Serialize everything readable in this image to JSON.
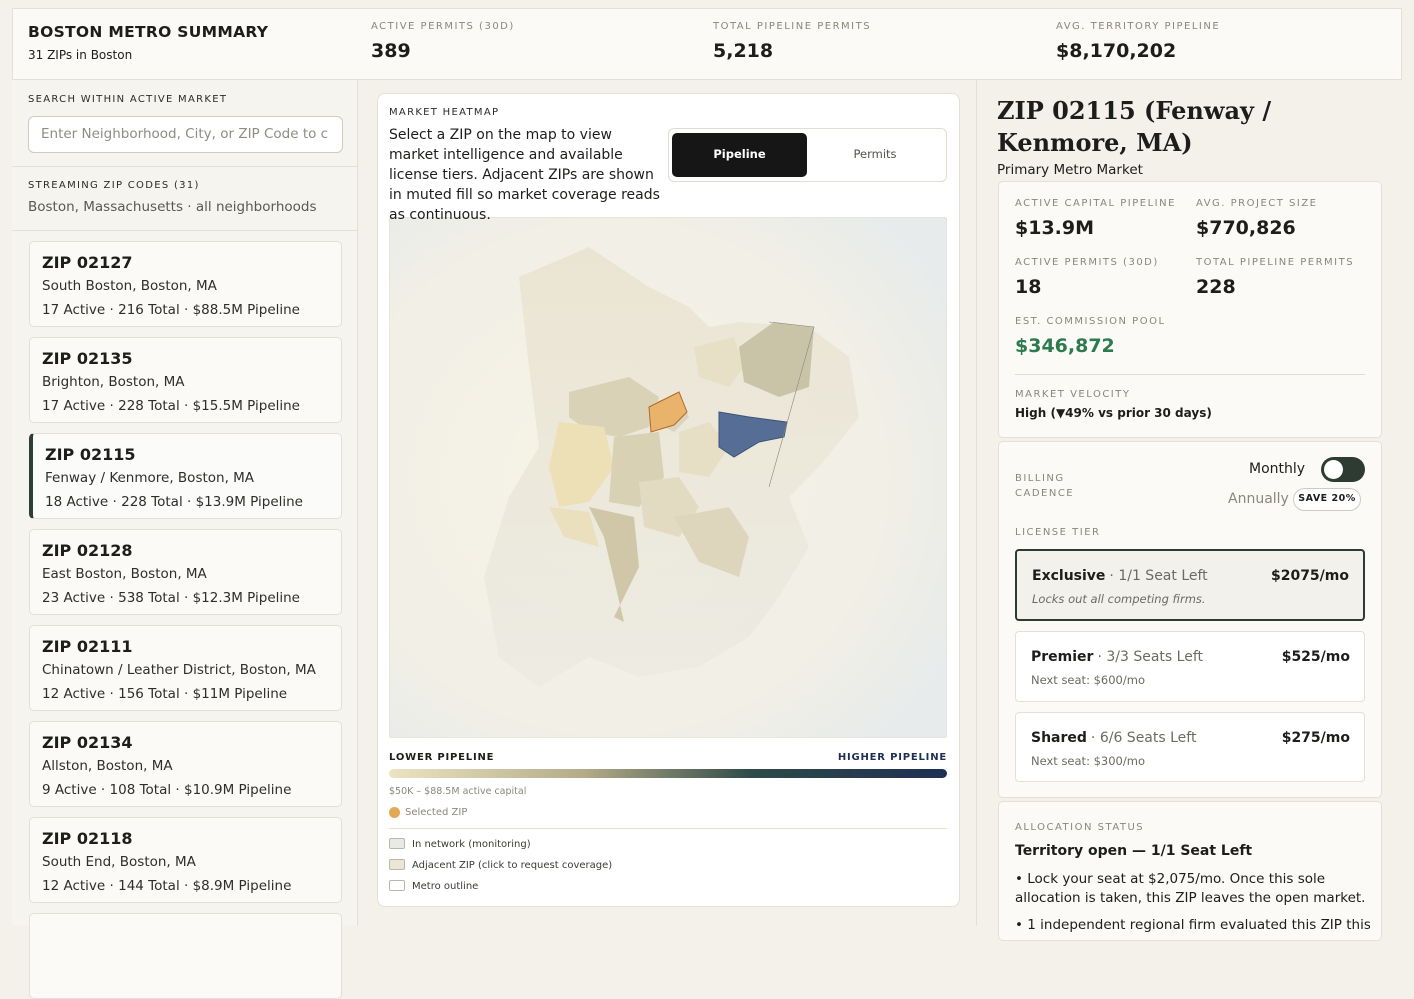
{
  "header": {
    "title": "BOSTON METRO SUMMARY",
    "subtitle": "31 ZIPs in Boston",
    "stats": [
      {
        "label": "ACTIVE PERMITS (30D)",
        "value": "389"
      },
      {
        "label": "TOTAL PIPELINE PERMITS",
        "value": "5,218"
      },
      {
        "label": "AVG. TERRITORY PIPELINE",
        "value": "$8,170,202"
      }
    ]
  },
  "sidebar": {
    "search_label": "SEARCH WITHIN ACTIVE MARKET",
    "search_placeholder": "Enter Neighborhood, City, or ZIP Code to c",
    "list_label": "STREAMING ZIP CODES (31)",
    "list_sub": "Boston, Massachusetts · all neighborhoods",
    "zips": [
      {
        "zip": "ZIP 02127",
        "area": "South Boston, Boston, MA",
        "stats": "17 Active · 216 Total · $88.5M Pipeline"
      },
      {
        "zip": "ZIP 02135",
        "area": "Brighton, Boston, MA",
        "stats": "17 Active · 228 Total · $15.5M Pipeline"
      },
      {
        "zip": "ZIP 02115",
        "area": "Fenway / Kenmore, Boston, MA",
        "stats": "18 Active · 228 Total · $13.9M Pipeline",
        "selected": true
      },
      {
        "zip": "ZIP 02128",
        "area": "East Boston, Boston, MA",
        "stats": "23 Active · 538 Total · $12.3M Pipeline"
      },
      {
        "zip": "ZIP 02111",
        "area": "Chinatown / Leather District, Boston, MA",
        "stats": "12 Active · 156 Total · $11M Pipeline"
      },
      {
        "zip": "ZIP 02134",
        "area": "Allston, Boston, MA",
        "stats": "9 Active · 108 Total · $10.9M Pipeline"
      },
      {
        "zip": "ZIP 02118",
        "area": "South End, Boston, MA",
        "stats": "12 Active · 144 Total · $8.9M Pipeline"
      }
    ]
  },
  "map": {
    "label": "MARKET HEATMAP",
    "description": "Select a ZIP on the map to view market intelligence and available license tiers. Adjacent ZIPs are shown in muted fill so market coverage reads as continuous.",
    "tabs": [
      "Pipeline",
      "Permits"
    ],
    "legend": {
      "low": "LOWER PIPELINE",
      "high": "HIGHER PIPELINE",
      "range": "$50K – $88.5M active capital",
      "selected": "Selected ZIP",
      "items": [
        "In network (monitoring)",
        "Adjacent ZIP (click to request coverage)",
        "Metro outline"
      ]
    }
  },
  "detail": {
    "title": "ZIP 02115 (Fenway / Kenmore, MA)",
    "subtitle": "Primary Metro Market",
    "metrics": [
      {
        "label": "ACTIVE CAPITAL PIPELINE",
        "value": "$13.9M"
      },
      {
        "label": "AVG. PROJECT SIZE",
        "value": "$770,826"
      },
      {
        "label": "ACTIVE PERMITS (30D)",
        "value": "18"
      },
      {
        "label": "TOTAL PIPELINE PERMITS",
        "value": "228"
      },
      {
        "label": "EST. COMMISSION POOL",
        "value": "$346,872"
      }
    ],
    "velocity_label": "MARKET VELOCITY",
    "velocity_value": "High (▼49% vs prior 30 days)",
    "billing": {
      "label": "BILLING CADENCE",
      "monthly": "Monthly",
      "annually": "Annually",
      "save": "SAVE 20%"
    },
    "license_label": "LICENSE TIER",
    "tiers": [
      {
        "name": "Exclusive",
        "seats": "· 1/1 Seat Left",
        "price": "$2075/mo",
        "note": "Locks out all competing firms."
      },
      {
        "name": "Premier",
        "seats": "· 3/3 Seats Left",
        "price": "$525/mo",
        "note": "Next seat: $600/mo"
      },
      {
        "name": "Shared",
        "seats": "· 6/6 Seats Left",
        "price": "$275/mo",
        "note": "Next seat: $300/mo"
      }
    ],
    "allocation": {
      "label": "ALLOCATION STATUS",
      "status": "Territory open — 1/1 Seat Left",
      "bullets": [
        "• Lock your seat at $2,075/mo. Once this sole allocation is taken, this ZIP leaves the open market.",
        "• 1 independent regional firm evaluated this ZIP this"
      ]
    }
  }
}
